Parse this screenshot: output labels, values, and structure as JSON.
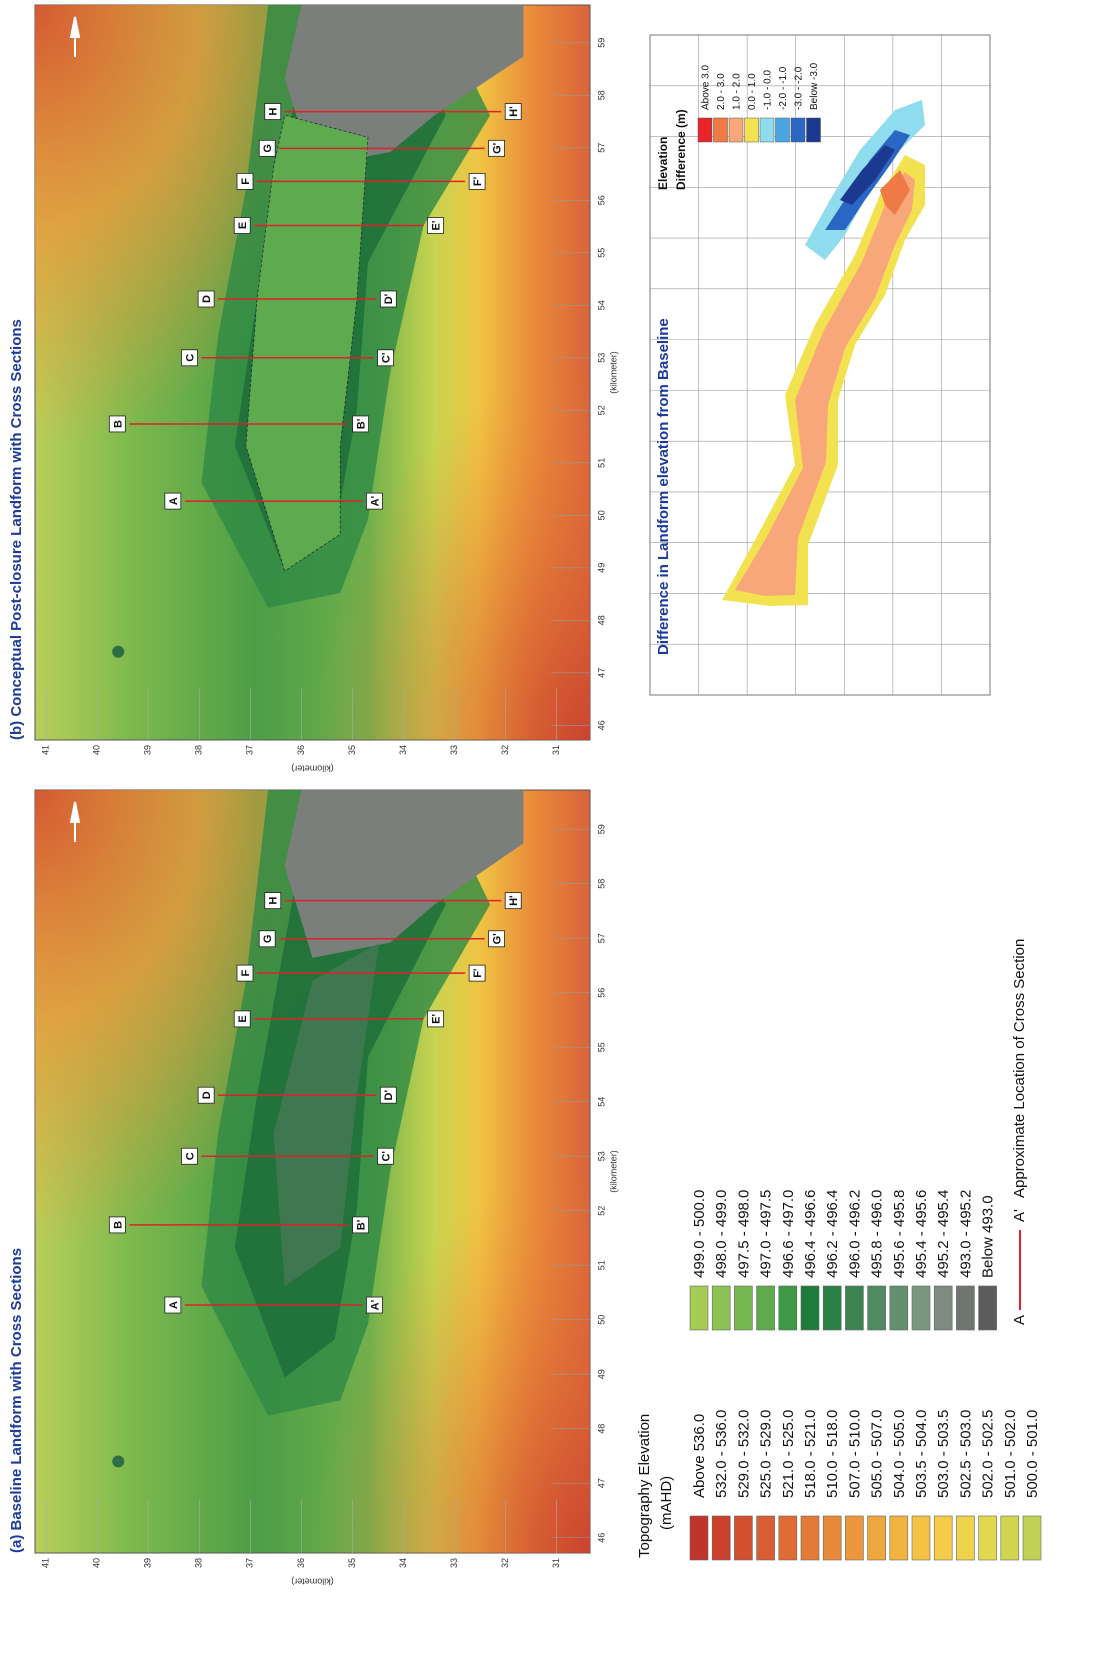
{
  "panel_a": {
    "title": "(a) Baseline Landform with Cross Sections",
    "x_ticks": [
      "46",
      "47",
      "48",
      "49",
      "50",
      "51",
      "52",
      "53",
      "54",
      "55",
      "56",
      "57",
      "58",
      "59"
    ],
    "y_ticks": [
      "41",
      "40",
      "39",
      "38",
      "37",
      "36",
      "35",
      "34",
      "33",
      "32",
      "31"
    ],
    "x_axis_label": "(kilometer)",
    "y_axis_label": "(kilometer)",
    "sections": [
      {
        "start": "A",
        "end": "A'"
      },
      {
        "start": "B",
        "end": "B'"
      },
      {
        "start": "C",
        "end": "C'"
      },
      {
        "start": "D",
        "end": "D'"
      },
      {
        "start": "E",
        "end": "E'"
      },
      {
        "start": "F",
        "end": "F'"
      },
      {
        "start": "G",
        "end": "G'"
      },
      {
        "start": "H",
        "end": "H'"
      }
    ]
  },
  "panel_b": {
    "title": "(b) Conceptual Post-closure Landform with Cross Sections",
    "x_ticks": [
      "46",
      "47",
      "48",
      "49",
      "50",
      "51",
      "52",
      "53",
      "54",
      "55",
      "56",
      "57",
      "58",
      "59"
    ],
    "y_ticks": [
      "41",
      "40",
      "39",
      "38",
      "37",
      "36",
      "35",
      "34",
      "33",
      "32",
      "31"
    ],
    "x_axis_label": "(kilometer)",
    "y_axis_label": "(kilometer)",
    "sections": [
      {
        "start": "A",
        "end": "A'"
      },
      {
        "start": "B",
        "end": "B'"
      },
      {
        "start": "C",
        "end": "C'"
      },
      {
        "start": "D",
        "end": "D'"
      },
      {
        "start": "E",
        "end": "E'"
      },
      {
        "start": "F",
        "end": "F'"
      },
      {
        "start": "G",
        "end": "G'"
      },
      {
        "start": "H",
        "end": "H'"
      }
    ]
  },
  "topography_legend": {
    "title": "Topography Elevation",
    "unit": "(mAHD)",
    "columns": [
      [
        {
          "label": "Above  536.0",
          "color": "#c0352b"
        },
        {
          "label": "532.0 - 536.0",
          "color": "#c9412d"
        },
        {
          "label": "529.0 - 532.0",
          "color": "#d24f30"
        },
        {
          "label": "525.0 - 529.0",
          "color": "#d95e33"
        },
        {
          "label": "521.0 - 525.0",
          "color": "#df6c35"
        },
        {
          "label": "518.0 - 521.0",
          "color": "#e47a37"
        },
        {
          "label": "510.0 - 518.0",
          "color": "#e88839"
        },
        {
          "label": "507.0 - 510.0",
          "color": "#ec973c"
        },
        {
          "label": "505.0 - 507.0",
          "color": "#efa63e"
        },
        {
          "label": "504.0 - 505.0",
          "color": "#f2b441"
        },
        {
          "label": "503.5 - 504.0",
          "color": "#f4c145"
        },
        {
          "label": "503.0 - 503.5",
          "color": "#f4cc48"
        },
        {
          "label": "502.5 - 503.0",
          "color": "#eed44b"
        },
        {
          "label": "502.0 - 502.5",
          "color": "#e2d84e"
        },
        {
          "label": "501.0 - 502.0",
          "color": "#d1d651"
        },
        {
          "label": "500.0 - 501.0",
          "color": "#bfd253"
        }
      ],
      [
        {
          "label": "499.0 - 500.0",
          "color": "#a8cb55"
        },
        {
          "label": "498.0 - 499.0",
          "color": "#8fc254"
        },
        {
          "label": "497.5 - 498.0",
          "color": "#76b752"
        },
        {
          "label": "497.0 - 497.5",
          "color": "#5eab4e"
        },
        {
          "label": "496.6 - 497.0",
          "color": "#3f9a47"
        },
        {
          "label": "496.4 - 496.6",
          "color": "#1f7d3a"
        },
        {
          "label": "496.2 - 496.4",
          "color": "#2a7f45"
        },
        {
          "label": "496.0 - 496.2",
          "color": "#3c8452"
        },
        {
          "label": "495.8 - 496.0",
          "color": "#4f8a60"
        },
        {
          "label": "495.6 - 495.8",
          "color": "#63906f"
        },
        {
          "label": "495.4 - 495.6",
          "color": "#79967f"
        },
        {
          "label": "495.2 - 495.4",
          "color": "#7f8a80"
        },
        {
          "label": "493.0 - 495.2",
          "color": "#6f7570"
        },
        {
          "label": "Below  493.0",
          "color": "#5a5d5b"
        }
      ]
    ]
  },
  "section_legend": {
    "start": "A",
    "end": "A'",
    "label": "Approximate Location of Cross Section"
  },
  "difference_map": {
    "title": "Difference in Landform elevation from Baseline",
    "legend_title": "Elevation",
    "legend_unit": "Difference (m)",
    "items": [
      {
        "label": "Above   3.0",
        "color": "#e8252b"
      },
      {
        "label": "2.0 -  3.0",
        "color": "#f07a45"
      },
      {
        "label": "1.0 -  2.0",
        "color": "#f7a77a"
      },
      {
        "label": "0.0 -  1.0",
        "color": "#f3e24f"
      },
      {
        "label": "-1.0 -  0.0",
        "color": "#8fdcef"
      },
      {
        "label": "-2.0 - -1.0",
        "color": "#4aa6e2"
      },
      {
        "label": "-3.0 - -2.0",
        "color": "#2a66c4"
      },
      {
        "label": "Below  -3.0",
        "color": "#1b3a8f"
      }
    ]
  }
}
